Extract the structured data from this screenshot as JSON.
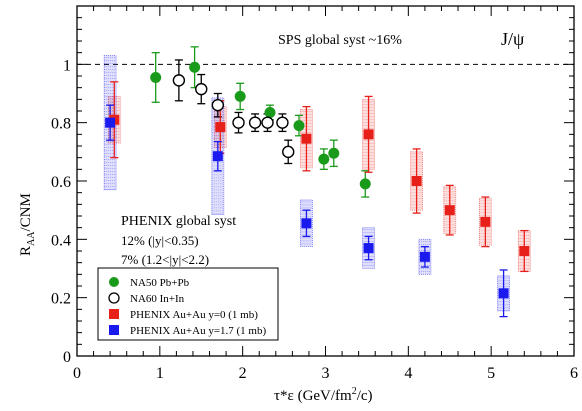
{
  "chart_data": {
    "type": "scatter",
    "xlabel": "τ*ε (GeV/fm",
    "xlabel_sup": "2",
    "xlabel_end": "/c)",
    "ylabel_main": "R",
    "ylabel_sub": "AA",
    "ylabel_end": "/CNM",
    "xlim": [
      0,
      6
    ],
    "ylim": [
      0,
      1.2
    ],
    "x_ticks": [
      0,
      1,
      2,
      3,
      4,
      5,
      6
    ],
    "y_ticks": [
      0,
      0.2,
      0.4,
      0.6,
      0.8,
      1
    ],
    "x_tick_labels": [
      "0",
      "1",
      "2",
      "3",
      "4",
      "5",
      "6"
    ],
    "y_tick_labels": [
      "0",
      "0.2",
      "0.4",
      "0.6",
      "0.8",
      "1"
    ],
    "reference_line_y": 1,
    "annotations": {
      "sps_syst": "SPS global syst ~16%",
      "particle": "J/ψ",
      "phenix_title": "PHENIX global syst",
      "phenix_line1": "12% (|y|<0.35)",
      "phenix_line2": "7% (1.2<|y|<2.2)"
    },
    "legend_position": "bottom-left",
    "series": [
      {
        "name": "NA50 Pb+Pb",
        "marker": "filled-circle",
        "color": "#1a9a1a",
        "points": [
          {
            "x": 0.95,
            "y": 0.955,
            "err": 0.085
          },
          {
            "x": 1.42,
            "y": 0.99,
            "err": 0.07
          },
          {
            "x": 1.97,
            "y": 0.89,
            "err": 0.045
          },
          {
            "x": 2.33,
            "y": 0.835,
            "err": 0.025
          },
          {
            "x": 2.68,
            "y": 0.79,
            "err": 0.035
          },
          {
            "x": 2.98,
            "y": 0.675,
            "err": 0.035
          },
          {
            "x": 3.1,
            "y": 0.695,
            "err": 0.045
          },
          {
            "x": 3.48,
            "y": 0.59,
            "err": 0.045
          }
        ]
      },
      {
        "name": "NA60 In+In",
        "marker": "open-circle",
        "color": "#000000",
        "points": [
          {
            "x": 1.23,
            "y": 0.945,
            "err": 0.07
          },
          {
            "x": 1.5,
            "y": 0.915,
            "err": 0.05
          },
          {
            "x": 1.7,
            "y": 0.86,
            "err": 0.04
          },
          {
            "x": 1.95,
            "y": 0.8,
            "err": 0.035
          },
          {
            "x": 2.15,
            "y": 0.8,
            "err": 0.03
          },
          {
            "x": 2.3,
            "y": 0.8,
            "err": 0.03
          },
          {
            "x": 2.48,
            "y": 0.8,
            "err": 0.03
          },
          {
            "x": 2.55,
            "y": 0.7,
            "err": 0.04
          }
        ]
      },
      {
        "name": "PHENIX Au+Au y=0 (1 mb)",
        "marker": "filled-square",
        "color": "#e8201a",
        "points": [
          {
            "x": 0.45,
            "y": 0.81,
            "err": 0.13,
            "syst": 0.08
          },
          {
            "x": 1.73,
            "y": 0.785,
            "err": 0.09,
            "syst": 0.07
          },
          {
            "x": 2.77,
            "y": 0.745,
            "err": 0.11,
            "syst": 0.1
          },
          {
            "x": 3.52,
            "y": 0.76,
            "err": 0.13,
            "syst": 0.12
          },
          {
            "x": 4.1,
            "y": 0.6,
            "err": 0.11,
            "syst": 0.1
          },
          {
            "x": 4.5,
            "y": 0.5,
            "err": 0.085,
            "syst": 0.08
          },
          {
            "x": 4.93,
            "y": 0.46,
            "err": 0.085,
            "syst": 0.08
          },
          {
            "x": 5.4,
            "y": 0.36,
            "err": 0.07,
            "syst": 0.07
          }
        ]
      },
      {
        "name": "PHENIX Au+Au y=1.7 (1 mb)",
        "marker": "filled-square",
        "color": "#1a1aee",
        "points": [
          {
            "x": 0.4,
            "y": 0.8,
            "err": 0.06,
            "syst": 0.23
          },
          {
            "x": 1.7,
            "y": 0.685,
            "err": 0.05,
            "syst": 0.2
          },
          {
            "x": 2.77,
            "y": 0.455,
            "err": 0.045,
            "syst": 0.08
          },
          {
            "x": 3.52,
            "y": 0.37,
            "err": 0.04,
            "syst": 0.07
          },
          {
            "x": 4.2,
            "y": 0.34,
            "err": 0.035,
            "syst": 0.06
          },
          {
            "x": 5.15,
            "y": 0.215,
            "err": 0.08,
            "syst": 0.06
          }
        ]
      }
    ]
  }
}
